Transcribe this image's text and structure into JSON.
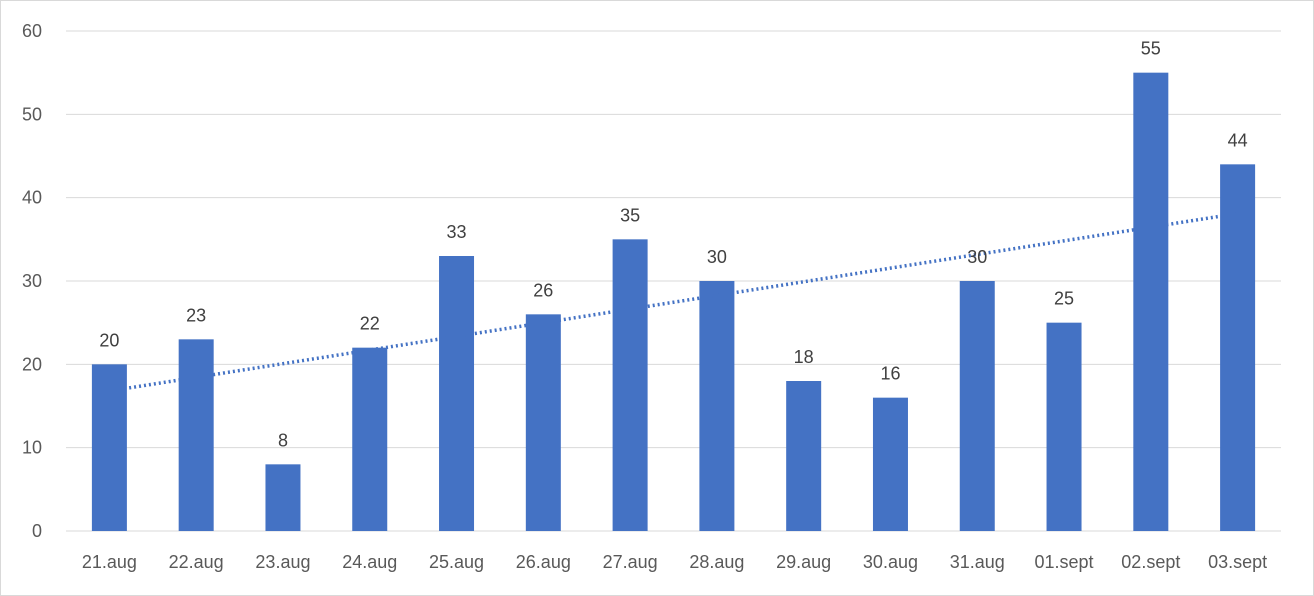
{
  "chart_data": {
    "type": "bar",
    "title": "",
    "xlabel": "",
    "ylabel": "",
    "categories": [
      "21.aug",
      "22.aug",
      "23.aug",
      "24.aug",
      "25.aug",
      "26.aug",
      "27.aug",
      "28.aug",
      "29.aug",
      "30.aug",
      "31.aug",
      "01.sept",
      "02.sept",
      "03.sept"
    ],
    "values": [
      20,
      23,
      8,
      22,
      33,
      26,
      35,
      30,
      18,
      16,
      30,
      25,
      55,
      44
    ],
    "data_labels": [
      "20",
      "23",
      "8",
      "22",
      "33",
      "26",
      "35",
      "30",
      "18",
      "16",
      "30",
      "25",
      "55",
      "44"
    ],
    "ylim": [
      0,
      60
    ],
    "yticks": [
      0,
      10,
      20,
      30,
      40,
      50,
      60
    ],
    "ytick_labels": [
      "0",
      "10",
      "20",
      "30",
      "40",
      "50",
      "60"
    ],
    "grid": true,
    "legend": "none",
    "trendline": {
      "type": "linear",
      "style": "dotted",
      "start_value": 16.8,
      "end_value": 38.1
    },
    "colors": {
      "bar": "#4472c4",
      "trendline": "#4472c4",
      "grid": "#d9d9d9",
      "axis_text": "#595959",
      "label_text": "#404040"
    }
  }
}
